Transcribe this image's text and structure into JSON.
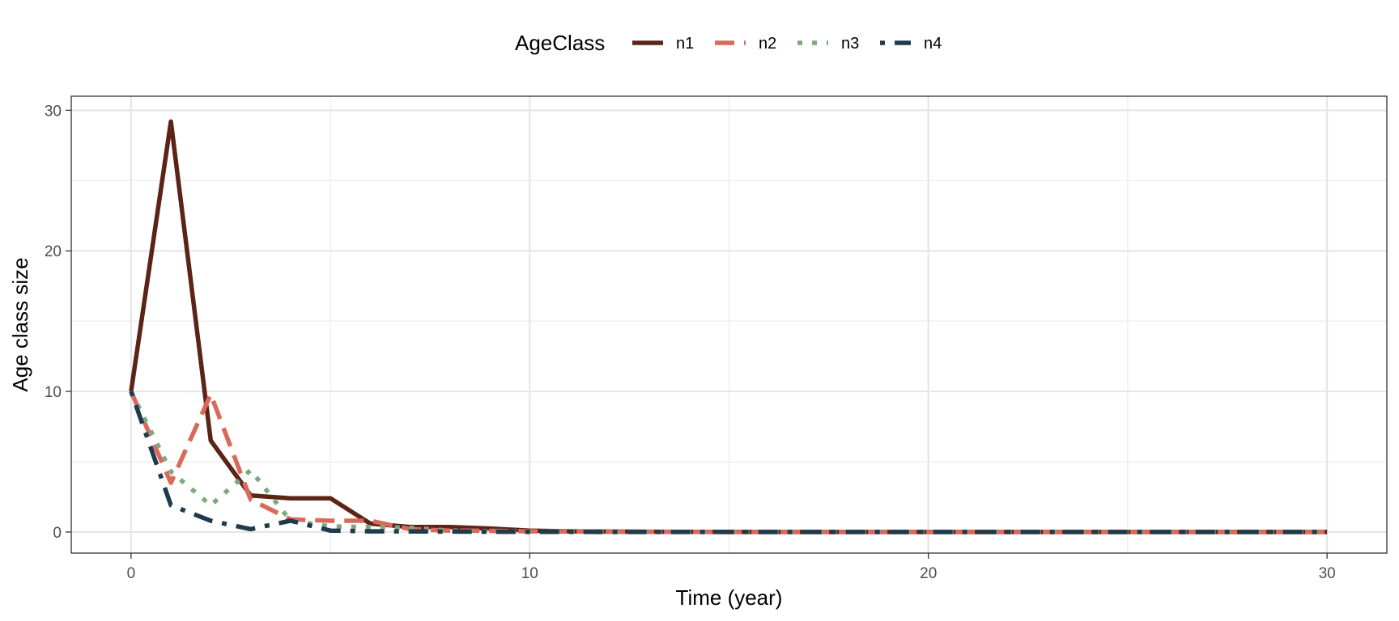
{
  "chart_data": {
    "type": "line",
    "title": "",
    "xlabel": "Time (year)",
    "ylabel": "Age class size",
    "xlim": [
      -1.5,
      31.5
    ],
    "ylim": [
      -1.5,
      31.0
    ],
    "x_ticks": [
      0,
      10,
      20,
      30
    ],
    "y_ticks": [
      0,
      10,
      20,
      30
    ],
    "grid": true,
    "legend": {
      "title": "AgeClass",
      "position": "top"
    },
    "x": [
      0,
      1,
      2,
      3,
      4,
      5,
      6,
      7,
      8,
      9,
      10,
      11,
      12,
      13,
      14,
      15,
      16,
      17,
      18,
      19,
      20,
      21,
      22,
      23,
      24,
      25,
      26,
      27,
      28,
      29,
      30
    ],
    "series": [
      {
        "name": "n1",
        "color": "#5c2317",
        "dash": "solid",
        "values": [
          10,
          29.2,
          6.5,
          2.6,
          2.4,
          2.4,
          0.6,
          0.35,
          0.35,
          0.25,
          0.1,
          0.05,
          0.03,
          0.02,
          0.01,
          0.01,
          0,
          0,
          0,
          0,
          0,
          0,
          0,
          0,
          0,
          0,
          0,
          0,
          0,
          0,
          0
        ]
      },
      {
        "name": "n2",
        "color": "#d9695a",
        "dash": "dashed",
        "values": [
          10,
          3.5,
          9.8,
          2.3,
          0.9,
          0.8,
          0.8,
          0.2,
          0.1,
          0.08,
          0.05,
          0.03,
          0.02,
          0.01,
          0.01,
          0,
          0,
          0,
          0,
          0,
          0,
          0,
          0,
          0,
          0,
          0,
          0,
          0,
          0,
          0,
          0
        ]
      },
      {
        "name": "n3",
        "color": "#7fa77f",
        "dash": "dotted",
        "values": [
          10,
          4.3,
          1.9,
          4.4,
          0.8,
          0.4,
          0.35,
          0.3,
          0.1,
          0.05,
          0.03,
          0.02,
          0.01,
          0.01,
          0,
          0,
          0,
          0,
          0,
          0,
          0,
          0,
          0,
          0,
          0,
          0,
          0,
          0,
          0,
          0,
          0
        ]
      },
      {
        "name": "n4",
        "color": "#1f3a4a",
        "dash": "dotdash",
        "values": [
          10,
          1.9,
          0.8,
          0.2,
          0.8,
          0.1,
          0.05,
          0.04,
          0.03,
          0.02,
          0.01,
          0.01,
          0,
          0,
          0,
          0,
          0,
          0,
          0,
          0,
          0,
          0,
          0,
          0,
          0,
          0,
          0,
          0,
          0,
          0,
          0
        ]
      }
    ]
  }
}
